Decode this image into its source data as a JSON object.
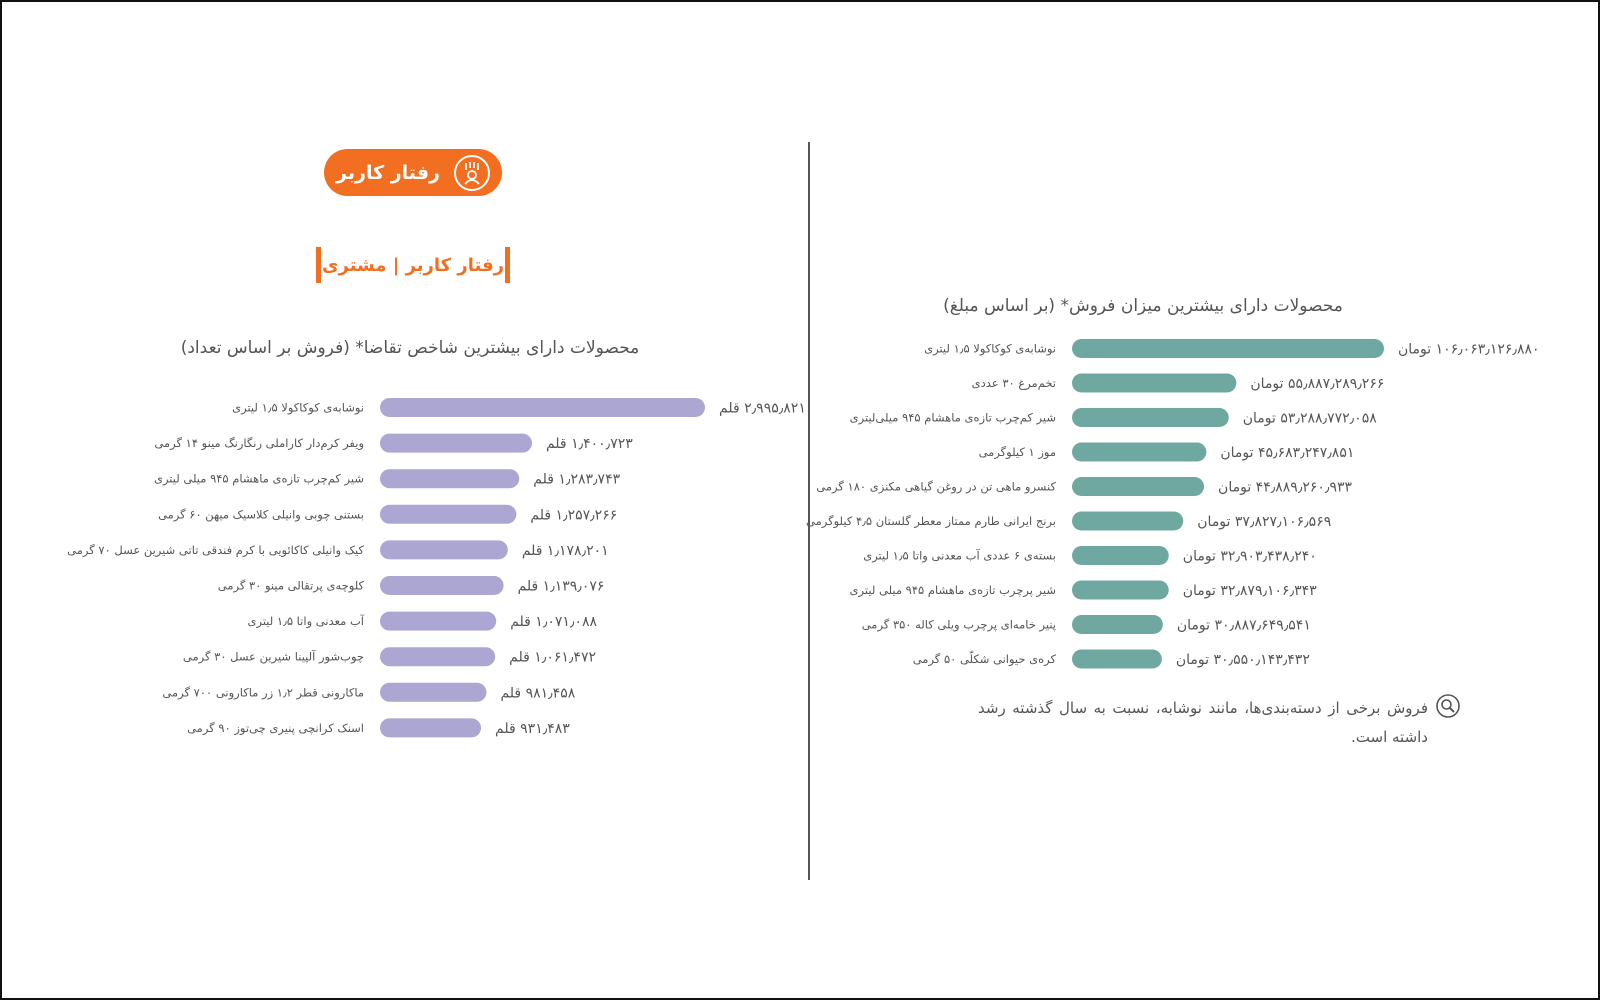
{
  "header": {
    "badge_label": "رفتار کاربر",
    "section_title": "رفتار کاربر | مشتری"
  },
  "chart_data": [
    {
      "type": "bar",
      "orientation": "horizontal",
      "title": "محصولات دارای بیشترین شاخص تقاضا* (فروش بر اساس تعداد)",
      "categories": [
        "نوشابه‌ی کوکاکولا ۱٫۵ لیتری",
        "ویفر کرم‌دار کاراملی رنگارنگ مینو ۱۴ گرمی",
        "شیر کم‌چرب تازه‌ی ماهشام ۹۴۵ میلی لیتری",
        "بستنی چوبی وانیلی کلاسیک میهن ۶۰ گرمی",
        "کیک وانیلی کاکائویی با کرم فندقی تاتی شیرین عسل ۷۰ گرمی",
        "کلوچه‌ی پرتقالی مینو ۳۰ گرمی",
        "آب معدنی واتا ۱٫۵ لیتری",
        "چوب‌شور آلپینا شیرین عسل ۳۰ گرمی",
        "ماکارونی قطر ۱٫۲ زر ماکارونی ۷۰۰ گرمی",
        "اسنک کرانچی پنیری چی‌توز ۹۰ گرمی"
      ],
      "values": [
        2995821,
        1400723,
        1283743,
        1257266,
        1178201,
        1139076,
        1071088,
        1061472,
        981458,
        931483
      ],
      "value_labels": [
        "۲٫۹۹۵٫۸۲۱ قلم",
        "۱٫۴۰۰٫۷۲۳ قلم",
        "۱٫۲۸۳٫۷۴۳ قلم",
        "۱٫۲۵۷٫۲۶۶ قلم",
        "۱٫۱۷۸٫۲۰۱ قلم",
        "۱٫۱۳۹٫۰۷۶ قلم",
        "۱٫۰۷۱٫۰۸۸ قلم",
        "۱٫۰۶۱٫۴۷۲ قلم",
        "۹۸۱٫۴۵۸ قلم",
        "۹۳۱٫۴۸۳ قلم"
      ],
      "color": "#aba6d2"
    },
    {
      "type": "bar",
      "orientation": "horizontal",
      "title": "محصولات دارای بیشترین میزان فروش* (بر اساس مبلغ)",
      "categories": [
        "نوشابه‌ی کوکاکولا ۱٫۵ لیتری",
        "تخم‌مرغ ۳۰ عددی",
        "شیر کم‌چرب تازه‌ی ماهشام ۹۴۵ میلی‌لیتری",
        "موز ۱ کیلوگرمی",
        "کنسرو ماهی تن در روغن گیاهی مکنزی ۱۸۰ گرمی",
        "برنج ایرانی طارم ممتاز معطر گلستان ۴٫۵ کیلوگرمی",
        "بسته‌ی ۶ عددی آب معدنی واتا ۱٫۵ لیتری",
        "شیر پرچرب تازه‌ی ماهشام ۹۴۵ میلی لیتری",
        "پنیر خامه‌ای پرچرب ویلی کاله ۳۵۰ گرمی",
        "کره‌ی حیوانی شکلّی ۵۰ گرمی"
      ],
      "values": [
        106063126880,
        55887289266,
        53288772058,
        45683247851,
        44889260933,
        37827106569,
        32903438240,
        32879106343,
        30887649541,
        30550143432
      ],
      "value_labels": [
        "۱۰۶٫۰۶۳٫۱۲۶٫۸۸۰ تومان",
        "۵۵٫۸۸۷٫۲۸۹٫۲۶۶ تومان",
        "۵۳٫۲۸۸٫۷۷۲٫۰۵۸ تومان",
        "۴۵٫۶۸۳٫۲۴۷٫۸۵۱ تومان",
        "۴۴٫۸۸۹٫۲۶۰٫۹۳۳ تومان",
        "۳۷٫۸۲۷٫۱۰۶٫۵۶۹ تومان",
        "۳۲٫۹۰۳٫۴۳۸٫۲۴۰ تومان",
        "۳۲٫۸۷۹٫۱۰۶٫۳۴۳ تومان",
        "۳۰٫۸۸۷٫۶۴۹٫۵۴۱ تومان",
        "۳۰٫۵۵۰٫۱۴۳٫۴۳۲ تومان"
      ],
      "color": "#6fa8a0"
    }
  ],
  "note": {
    "icon": "magnifier-icon",
    "text": "فروش برخی از دسته‌بندی‌ها، مانند نوشابه، نسبت به سال گذشته رشد داشته است."
  },
  "colors": {
    "accent": "#f26f21",
    "left_bars": "#aba6d2",
    "right_bars": "#6fa8a0",
    "text": "#555555"
  }
}
